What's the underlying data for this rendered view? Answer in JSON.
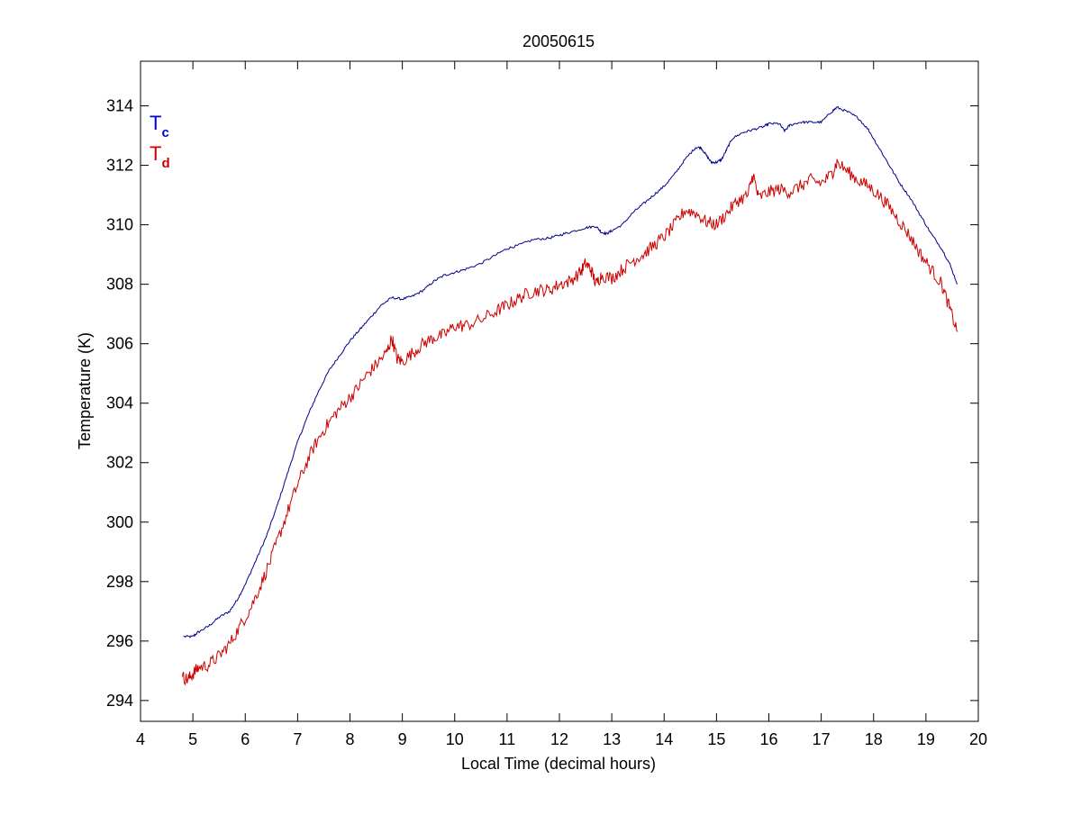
{
  "chart_data": {
    "type": "line",
    "title": "20050615",
    "xlabel": "Local Time (decimal hours)",
    "ylabel": "Temperature (K)",
    "xlim": [
      4,
      20
    ],
    "ylim": [
      293.3,
      315.5
    ],
    "xticks": [
      4,
      5,
      6,
      7,
      8,
      9,
      10,
      11,
      12,
      13,
      14,
      15,
      16,
      17,
      18,
      19,
      20
    ],
    "yticks": [
      294,
      296,
      298,
      300,
      302,
      304,
      306,
      308,
      310,
      312,
      314
    ],
    "grid": false,
    "legend": {
      "placement": "top-left",
      "entries": [
        {
          "main": "T",
          "sub": "c",
          "color": "#0000cc"
        },
        {
          "main": "T",
          "sub": "d",
          "color": "#cc0000"
        }
      ]
    },
    "series": [
      {
        "color": "#00008b",
        "x": [
          4.82,
          5.0,
          5.1,
          5.3,
          5.5,
          5.7,
          5.85,
          6.0,
          6.2,
          6.4,
          6.6,
          6.8,
          7.0,
          7.2,
          7.4,
          7.6,
          7.8,
          8.0,
          8.2,
          8.4,
          8.6,
          8.8,
          9.0,
          9.2,
          9.4,
          9.6,
          9.8,
          10.0,
          10.2,
          10.5,
          10.8,
          11.0,
          11.2,
          11.5,
          11.8,
          12.0,
          12.2,
          12.5,
          12.7,
          12.8,
          12.9,
          13.0,
          13.2,
          13.4,
          13.6,
          13.8,
          14.0,
          14.2,
          14.4,
          14.6,
          14.7,
          14.8,
          14.9,
          15.0,
          15.1,
          15.2,
          15.3,
          15.5,
          15.7,
          15.9,
          16.0,
          16.2,
          16.3,
          16.4,
          16.6,
          16.8,
          17.0,
          17.2,
          17.3,
          17.5,
          17.7,
          17.9,
          18.1,
          18.3,
          18.5,
          18.7,
          18.9,
          19.1,
          19.3,
          19.45,
          19.6
        ],
        "values": [
          296.15,
          296.15,
          296.3,
          296.5,
          296.8,
          297.0,
          297.4,
          297.9,
          298.7,
          299.5,
          300.5,
          301.6,
          302.7,
          303.6,
          304.4,
          305.1,
          305.6,
          306.1,
          306.5,
          306.9,
          307.3,
          307.55,
          307.5,
          307.6,
          307.8,
          308.1,
          308.3,
          308.4,
          308.5,
          308.7,
          309.0,
          309.2,
          309.3,
          309.5,
          309.55,
          309.65,
          309.75,
          309.9,
          309.95,
          309.75,
          309.7,
          309.8,
          310.0,
          310.4,
          310.7,
          311.0,
          311.3,
          311.7,
          312.2,
          312.6,
          312.6,
          312.35,
          312.1,
          312.1,
          312.2,
          312.55,
          312.9,
          313.1,
          313.2,
          313.3,
          313.4,
          313.4,
          313.15,
          313.35,
          313.45,
          313.45,
          313.45,
          313.8,
          313.95,
          313.8,
          313.6,
          313.2,
          312.6,
          312.0,
          311.4,
          310.9,
          310.3,
          309.7,
          309.2,
          308.7,
          308.0
        ]
      },
      {
        "color": "#cc0000",
        "x": [
          4.8,
          4.9,
          5.0,
          5.1,
          5.3,
          5.5,
          5.7,
          5.9,
          6.1,
          6.3,
          6.5,
          6.7,
          6.9,
          7.1,
          7.3,
          7.5,
          7.7,
          7.9,
          8.1,
          8.3,
          8.5,
          8.7,
          8.8,
          8.9,
          9.0,
          9.2,
          9.4,
          9.6,
          9.8,
          10.0,
          10.2,
          10.5,
          10.8,
          11.0,
          11.2,
          11.4,
          11.6,
          11.8,
          12.0,
          12.2,
          12.4,
          12.5,
          12.6,
          12.7,
          12.8,
          13.0,
          13.2,
          13.4,
          13.6,
          13.8,
          14.0,
          14.2,
          14.4,
          14.6,
          14.8,
          15.0,
          15.2,
          15.4,
          15.6,
          15.7,
          15.8,
          16.0,
          16.2,
          16.4,
          16.6,
          16.8,
          17.0,
          17.2,
          17.3,
          17.5,
          17.7,
          17.9,
          18.1,
          18.3,
          18.5,
          18.7,
          18.9,
          19.1,
          19.3,
          19.45,
          19.6
        ],
        "values": [
          294.8,
          294.7,
          294.9,
          295.1,
          295.2,
          295.5,
          295.9,
          296.5,
          297.1,
          297.9,
          298.8,
          299.8,
          300.8,
          301.7,
          302.5,
          303.1,
          303.6,
          304.0,
          304.4,
          304.9,
          305.3,
          305.7,
          306.2,
          305.5,
          305.4,
          305.7,
          306.0,
          306.2,
          306.3,
          306.6,
          306.6,
          306.8,
          307.1,
          307.3,
          307.5,
          307.7,
          307.8,
          307.8,
          308.0,
          308.1,
          308.4,
          308.7,
          308.5,
          308.0,
          308.3,
          308.2,
          308.5,
          308.8,
          309.0,
          309.3,
          309.6,
          310.0,
          310.5,
          310.4,
          310.1,
          310.0,
          310.4,
          310.8,
          311.0,
          311.7,
          310.9,
          311.1,
          311.2,
          311.1,
          311.3,
          311.5,
          311.4,
          311.7,
          312.1,
          311.8,
          311.5,
          311.3,
          311.0,
          310.6,
          310.1,
          309.6,
          309.0,
          308.5,
          308.0,
          307.2,
          306.4
        ]
      }
    ]
  }
}
